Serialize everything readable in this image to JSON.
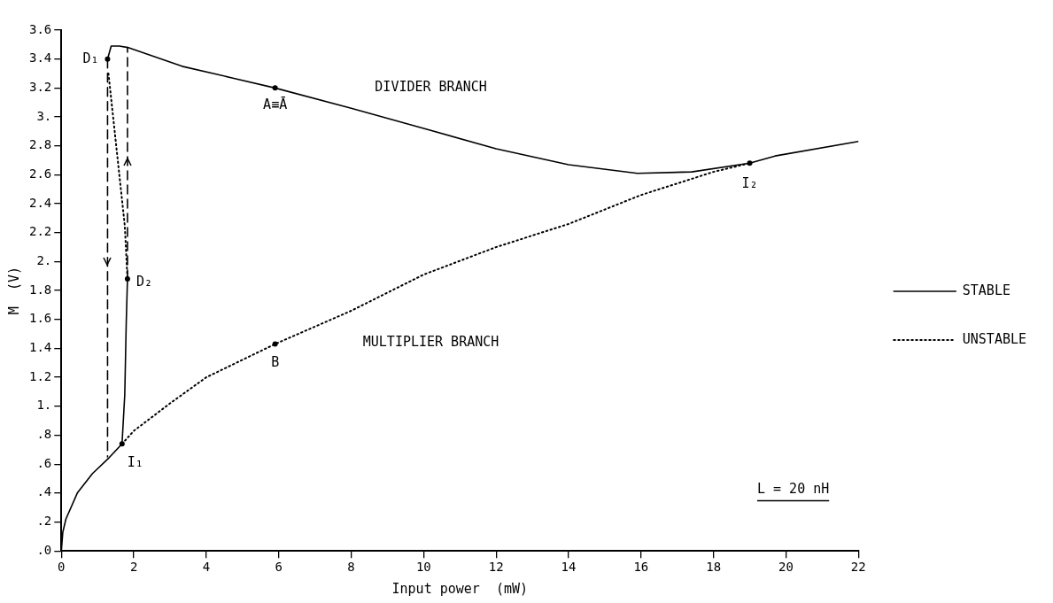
{
  "chart_data": {
    "type": "line",
    "xlabel": "Input power  (mW)",
    "ylabel": "M  (V)",
    "xlim": [
      0,
      22
    ],
    "xticks": [
      0,
      2,
      4,
      6,
      8,
      10,
      12,
      14,
      16,
      18,
      20,
      22
    ],
    "ylim": [
      0,
      3.6
    ],
    "yticks": [
      {
        "value": 0,
        "label": ".0"
      },
      {
        "value": 0.2,
        "label": ".2"
      },
      {
        "value": 0.4,
        "label": ".4"
      },
      {
        "value": 0.6,
        "label": ".6"
      },
      {
        "value": 0.8,
        "label": ".8"
      },
      {
        "value": 1,
        "label": "1."
      },
      1.2,
      1.4,
      1.6,
      1.8,
      {
        "value": 2,
        "label": "2."
      },
      2.2,
      2.4,
      2.6,
      2.8,
      {
        "value": 3,
        "label": "3."
      },
      3.2,
      3.4,
      3.6
    ],
    "grid": false,
    "legend": "right",
    "marker": "none",
    "series": [
      {
        "name": "STABLE",
        "color": "#000000",
        "line_style": "solid",
        "x": [
          1.275,
          1.375,
          1.6,
          1.83,
          3.33,
          4.71,
          5.9,
          8,
          10,
          12,
          14,
          15.9,
          17.4,
          19,
          19.7,
          22
        ],
        "values": [
          3.4,
          3.49,
          3.49,
          3.48,
          3.35,
          3.27,
          3.2,
          3.06,
          2.92,
          2.78,
          2.67,
          2.61,
          2.62,
          2.68,
          2.73,
          2.83
        ]
      },
      {
        "color": "#000000",
        "line_style": "solid",
        "x": [
          0,
          0.04,
          0.125,
          0.44,
          0.86,
          1.32,
          1.675,
          1.75,
          1.79,
          1.825
        ],
        "values": [
          0,
          0.13,
          0.22,
          0.4,
          0.535,
          0.645,
          0.74,
          1.08,
          1.57,
          1.88
        ]
      },
      {
        "name": "UNSTABLE",
        "color": "#000000",
        "line_style": "dotted",
        "x": [
          1.675,
          2,
          3,
          4,
          5.9,
          8,
          10,
          12,
          14,
          16,
          18,
          19
        ],
        "values": [
          0.74,
          0.83,
          1.02,
          1.2,
          1.43,
          1.66,
          1.91,
          2.1,
          2.26,
          2.46,
          2.62,
          2.68
        ]
      },
      {
        "color": "#000000",
        "line_style": "dotted",
        "x": [
          1.3,
          1.45,
          1.6,
          1.75,
          1.825
        ],
        "values": [
          3.3,
          2.95,
          2.6,
          2.25,
          1.88
        ]
      },
      {
        "color": "#000000",
        "line_style": "dashed",
        "x": [
          1.275,
          1.275
        ],
        "values": [
          3.4,
          0.65
        ]
      },
      {
        "color": "#000000",
        "line_style": "dashed",
        "x": [
          1.825,
          1.825
        ],
        "values": [
          1.88,
          3.48
        ]
      }
    ],
    "annotations": [
      {
        "text": "D₁",
        "x": 1.275,
        "y": 3.4
      },
      {
        "text": "D₂",
        "x": 1.825,
        "y": 1.88
      },
      {
        "text": "A≡Ā",
        "x": 5.9,
        "y": 3.2
      },
      {
        "text": "B",
        "x": 5.9,
        "y": 1.43
      },
      {
        "text": "I₁",
        "x": 1.675,
        "y": 0.74
      },
      {
        "text": "I₂",
        "x": 19,
        "y": 2.68
      },
      "DIVIDER BRANCH",
      "MULTIPLIER BRANCH",
      "L = 20 nH"
    ]
  }
}
